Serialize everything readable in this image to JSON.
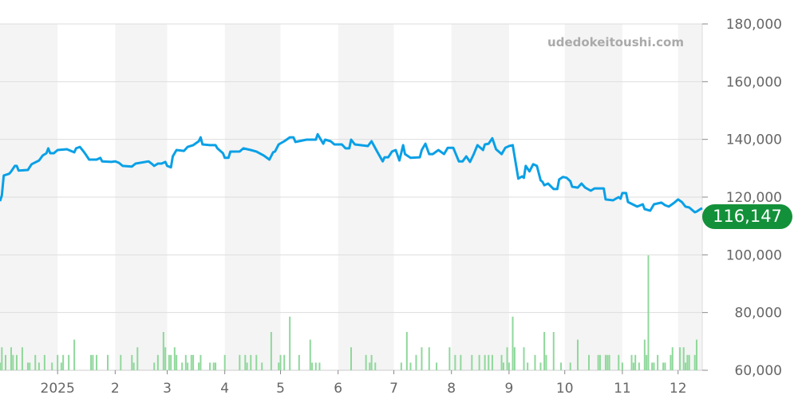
{
  "watermark": "udedokeitoushi.com",
  "current_price_label": "116,147",
  "colors": {
    "line": "#0aa0e6",
    "volume": "#8fd89b",
    "badge": "#13913a",
    "band": "#f4f4f4"
  },
  "chart_data": {
    "type": "line",
    "title": "",
    "xlabel": "",
    "ylabel": "",
    "x_unit": "days since 2024-12-01",
    "xlim": [
      0,
      378
    ],
    "ylim": [
      60000,
      180000
    ],
    "y_ticks": [
      60000,
      80000,
      100000,
      120000,
      140000,
      160000,
      180000
    ],
    "y_tick_labels": [
      "60,000",
      "80,000",
      "100,000",
      "120,000",
      "140,000",
      "160,000",
      "180,000"
    ],
    "x_ticks": [
      {
        "day": 31,
        "label": "2025"
      },
      {
        "day": 62,
        "label": "2"
      },
      {
        "day": 90,
        "label": "3"
      },
      {
        "day": 121,
        "label": "4"
      },
      {
        "day": 151,
        "label": "5"
      },
      {
        "day": 182,
        "label": "6"
      },
      {
        "day": 212,
        "label": "7"
      },
      {
        "day": 243,
        "label": "8"
      },
      {
        "day": 274,
        "label": "9"
      },
      {
        "day": 304,
        "label": "10"
      },
      {
        "day": 335,
        "label": "11"
      },
      {
        "day": 365,
        "label": "12"
      }
    ],
    "grid": true,
    "last_value": 116147,
    "series": [
      {
        "name": "price",
        "points": [
          [
            0,
            118600
          ],
          [
            1,
            120550
          ],
          [
            2,
            127500
          ],
          [
            5,
            128100
          ],
          [
            6,
            128900
          ],
          [
            8,
            130800
          ],
          [
            9,
            130800
          ],
          [
            10,
            129200
          ],
          [
            15,
            129400
          ],
          [
            17,
            131400
          ],
          [
            21,
            132700
          ],
          [
            23,
            134400
          ],
          [
            25,
            135200
          ],
          [
            26,
            136900
          ],
          [
            27,
            135200
          ],
          [
            29,
            135200
          ],
          [
            31,
            136300
          ],
          [
            36,
            136600
          ],
          [
            40,
            135500
          ],
          [
            41,
            136900
          ],
          [
            43,
            137400
          ],
          [
            45,
            135800
          ],
          [
            46,
            134900
          ],
          [
            48,
            133000
          ],
          [
            52,
            133000
          ],
          [
            54,
            133600
          ],
          [
            55,
            132400
          ],
          [
            60,
            132200
          ],
          [
            62,
            132400
          ],
          [
            64,
            131900
          ],
          [
            66,
            130800
          ],
          [
            71,
            130600
          ],
          [
            73,
            131600
          ],
          [
            80,
            132400
          ],
          [
            82,
            131400
          ],
          [
            83,
            130800
          ],
          [
            85,
            131600
          ],
          [
            87,
            131600
          ],
          [
            89,
            132200
          ],
          [
            90,
            130800
          ],
          [
            92,
            130300
          ],
          [
            93,
            134100
          ],
          [
            95,
            136300
          ],
          [
            99,
            136000
          ],
          [
            101,
            137400
          ],
          [
            104,
            138000
          ],
          [
            107,
            139350
          ],
          [
            108,
            140700
          ],
          [
            109,
            138250
          ],
          [
            113,
            138000
          ],
          [
            116,
            138000
          ],
          [
            117,
            136900
          ],
          [
            120,
            135200
          ],
          [
            121,
            133600
          ],
          [
            123,
            133600
          ],
          [
            124,
            135760
          ],
          [
            129,
            135800
          ],
          [
            131,
            136900
          ],
          [
            135,
            136300
          ],
          [
            138,
            135800
          ],
          [
            142,
            134400
          ],
          [
            145,
            133000
          ],
          [
            147,
            135500
          ],
          [
            148,
            135800
          ],
          [
            150,
            138250
          ],
          [
            153,
            139350
          ],
          [
            156,
            140700
          ],
          [
            158,
            140700
          ],
          [
            159,
            139100
          ],
          [
            165,
            139900
          ],
          [
            170,
            139900
          ],
          [
            171,
            141800
          ],
          [
            174,
            138500
          ],
          [
            175,
            139900
          ],
          [
            178,
            139350
          ],
          [
            180,
            138250
          ],
          [
            184,
            138250
          ],
          [
            186,
            136900
          ],
          [
            188,
            136900
          ],
          [
            189,
            139900
          ],
          [
            191,
            138250
          ],
          [
            198,
            137700
          ],
          [
            200,
            139350
          ],
          [
            203,
            135800
          ],
          [
            206,
            132400
          ],
          [
            207,
            133800
          ],
          [
            209,
            133800
          ],
          [
            211,
            135800
          ],
          [
            213,
            136300
          ],
          [
            215,
            132700
          ],
          [
            217,
            138000
          ],
          [
            218,
            134900
          ],
          [
            221,
            133600
          ],
          [
            226,
            133800
          ],
          [
            227,
            136300
          ],
          [
            229,
            138500
          ],
          [
            231,
            134900
          ],
          [
            233,
            134900
          ],
          [
            236,
            136300
          ],
          [
            239,
            134900
          ],
          [
            241,
            137100
          ],
          [
            244,
            137100
          ],
          [
            247,
            132400
          ],
          [
            249,
            132400
          ],
          [
            251,
            134100
          ],
          [
            253,
            132200
          ],
          [
            255,
            134900
          ],
          [
            257,
            138000
          ],
          [
            260,
            136300
          ],
          [
            261,
            138250
          ],
          [
            263,
            138500
          ],
          [
            265,
            140400
          ],
          [
            267,
            136600
          ],
          [
            270,
            134900
          ],
          [
            272,
            137100
          ],
          [
            274,
            137700
          ],
          [
            276,
            138000
          ],
          [
            279,
            126400
          ],
          [
            281,
            127200
          ],
          [
            282,
            126700
          ],
          [
            283,
            130800
          ],
          [
            285,
            128900
          ],
          [
            287,
            131400
          ],
          [
            289,
            130800
          ],
          [
            291,
            125800
          ],
          [
            292,
            125300
          ],
          [
            293,
            124100
          ],
          [
            295,
            124700
          ],
          [
            298,
            122800
          ],
          [
            300,
            122800
          ],
          [
            301,
            126100
          ],
          [
            303,
            127000
          ],
          [
            305,
            126700
          ],
          [
            307,
            125500
          ],
          [
            308,
            123600
          ],
          [
            311,
            123300
          ],
          [
            313,
            124700
          ],
          [
            315,
            123300
          ],
          [
            318,
            122200
          ],
          [
            320,
            123000
          ],
          [
            325,
            123000
          ],
          [
            326,
            119200
          ],
          [
            330,
            118900
          ],
          [
            333,
            120000
          ],
          [
            334,
            119450
          ],
          [
            335,
            121400
          ],
          [
            337,
            121400
          ],
          [
            338,
            118300
          ],
          [
            343,
            116700
          ],
          [
            346,
            117500
          ],
          [
            347,
            115850
          ],
          [
            350,
            115300
          ],
          [
            352,
            117500
          ],
          [
            356,
            118100
          ],
          [
            358,
            117200
          ],
          [
            360,
            116700
          ],
          [
            363,
            118100
          ],
          [
            365,
            119200
          ],
          [
            367,
            118300
          ],
          [
            369,
            116700
          ],
          [
            371,
            116400
          ],
          [
            374,
            114750
          ],
          [
            375,
            115000
          ],
          [
            377,
            115850
          ],
          [
            378,
            116147
          ]
        ]
      },
      {
        "name": "volume",
        "points": [
          [
            0,
            1
          ],
          [
            1,
            3
          ],
          [
            3,
            2
          ],
          [
            6,
            3
          ],
          [
            7,
            2
          ],
          [
            9,
            2
          ],
          [
            12,
            3
          ],
          [
            15,
            1
          ],
          [
            16,
            1
          ],
          [
            19,
            2
          ],
          [
            21,
            1
          ],
          [
            24,
            2
          ],
          [
            28,
            1
          ],
          [
            31,
            2
          ],
          [
            33,
            1
          ],
          [
            34,
            2
          ],
          [
            37,
            2
          ],
          [
            40,
            4
          ],
          [
            49,
            2
          ],
          [
            50,
            2
          ],
          [
            52,
            2
          ],
          [
            58,
            2
          ],
          [
            65,
            2
          ],
          [
            71,
            2
          ],
          [
            72,
            1
          ],
          [
            74,
            3
          ],
          [
            83,
            1
          ],
          [
            85,
            2
          ],
          [
            88,
            5
          ],
          [
            89,
            3
          ],
          [
            91,
            2
          ],
          [
            92,
            2
          ],
          [
            94,
            3
          ],
          [
            95,
            2
          ],
          [
            98,
            1
          ],
          [
            100,
            2
          ],
          [
            101,
            1
          ],
          [
            103,
            2
          ],
          [
            104,
            2
          ],
          [
            107,
            1
          ],
          [
            108,
            2
          ],
          [
            113,
            1
          ],
          [
            115,
            1
          ],
          [
            116,
            1
          ],
          [
            121,
            2
          ],
          [
            129,
            2
          ],
          [
            132,
            2
          ],
          [
            133,
            1
          ],
          [
            135,
            2
          ],
          [
            138,
            2
          ],
          [
            141,
            1
          ],
          [
            146,
            5
          ],
          [
            150,
            1
          ],
          [
            151,
            2
          ],
          [
            153,
            2
          ],
          [
            156,
            7
          ],
          [
            161,
            2
          ],
          [
            167,
            4
          ],
          [
            168,
            1
          ],
          [
            170,
            1
          ],
          [
            172,
            1
          ],
          [
            189,
            3
          ],
          [
            197,
            2
          ],
          [
            199,
            1
          ],
          [
            200,
            2
          ],
          [
            202,
            1
          ],
          [
            216,
            1
          ],
          [
            219,
            5
          ],
          [
            221,
            1
          ],
          [
            224,
            2
          ],
          [
            227,
            3
          ],
          [
            231,
            3
          ],
          [
            235,
            1
          ],
          [
            242,
            3
          ],
          [
            245,
            2
          ],
          [
            248,
            2
          ],
          [
            254,
            2
          ],
          [
            258,
            2
          ],
          [
            261,
            2
          ],
          [
            263,
            2
          ],
          [
            265,
            2
          ],
          [
            270,
            2
          ],
          [
            271,
            1
          ],
          [
            273,
            3
          ],
          [
            274,
            1
          ],
          [
            276,
            7
          ],
          [
            277,
            3
          ],
          [
            282,
            3
          ],
          [
            284,
            1
          ],
          [
            288,
            2
          ],
          [
            291,
            1
          ],
          [
            293,
            5
          ],
          [
            294,
            2
          ],
          [
            298,
            5
          ],
          [
            302,
            1
          ],
          [
            307,
            1
          ],
          [
            311,
            4
          ],
          [
            317,
            2
          ],
          [
            322,
            2
          ],
          [
            323,
            2
          ],
          [
            326,
            2
          ],
          [
            327,
            2
          ],
          [
            328,
            2
          ],
          [
            333,
            2
          ],
          [
            335,
            1
          ],
          [
            340,
            2
          ],
          [
            341,
            1
          ],
          [
            342,
            2
          ],
          [
            344,
            1
          ],
          [
            347,
            4
          ],
          [
            348,
            2
          ],
          [
            349,
            15
          ],
          [
            351,
            1
          ],
          [
            352,
            1
          ],
          [
            354,
            2
          ],
          [
            357,
            1
          ],
          [
            358,
            1
          ],
          [
            361,
            2
          ],
          [
            362,
            3
          ],
          [
            366,
            3
          ],
          [
            368,
            3
          ],
          [
            369,
            1
          ],
          [
            370,
            2
          ],
          [
            371,
            2
          ],
          [
            374,
            2
          ],
          [
            375,
            4
          ]
        ]
      }
    ]
  }
}
